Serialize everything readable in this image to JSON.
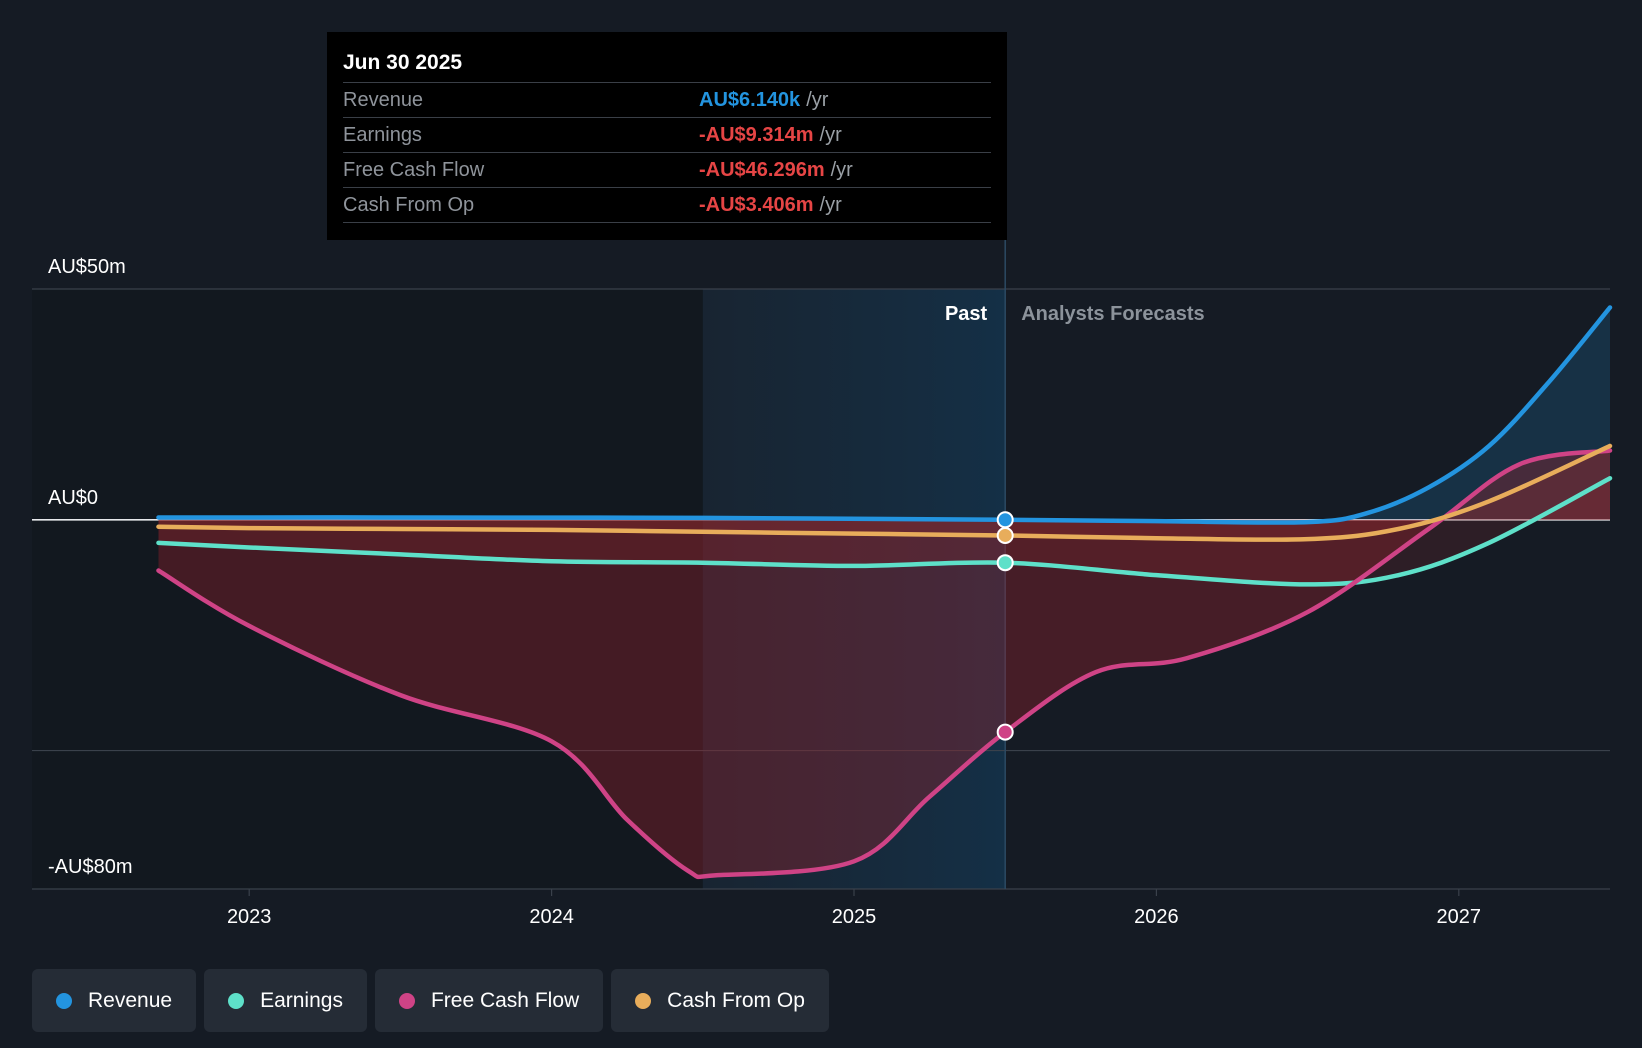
{
  "tooltip": {
    "date": "Jun 30 2025",
    "rows": [
      {
        "label": "Revenue",
        "value": "AU$6.140k",
        "unit": "/yr",
        "color": "#2394df"
      },
      {
        "label": "Earnings",
        "value": "-AU$9.314m",
        "unit": "/yr",
        "color": "#e64545"
      },
      {
        "label": "Free Cash Flow",
        "value": "-AU$46.296m",
        "unit": "/yr",
        "color": "#e64545"
      },
      {
        "label": "Cash From Op",
        "value": "-AU$3.406m",
        "unit": "/yr",
        "color": "#e64545"
      }
    ]
  },
  "legend": [
    {
      "label": "Revenue",
      "color": "#2394df"
    },
    {
      "label": "Earnings",
      "color": "#5ee0c9"
    },
    {
      "label": "Free Cash Flow",
      "color": "#cf4386"
    },
    {
      "label": "Cash From Op",
      "color": "#e8ad5b"
    }
  ],
  "chart_data": {
    "type": "line",
    "title": "",
    "xlabel": "",
    "ylabel": "",
    "xlim": [
      2022.5,
      2027.5
    ],
    "ylim": [
      -80,
      50
    ],
    "y_tick_labels": [
      {
        "value": 50,
        "label": "AU$50m"
      },
      {
        "value": 0,
        "label": "AU$0"
      },
      {
        "value": -80,
        "label": "-AU$80m"
      }
    ],
    "gridlines": [
      50,
      0,
      -50,
      -80
    ],
    "x_ticks": [
      {
        "value": 2023,
        "label": "2023"
      },
      {
        "value": 2024,
        "label": "2024"
      },
      {
        "value": 2025,
        "label": "2025"
      },
      {
        "value": 2026,
        "label": "2026"
      },
      {
        "value": 2027,
        "label": "2027"
      }
    ],
    "past_label": "Past",
    "forecast_label": "Analysts Forecasts",
    "past_region": [
      2024.5,
      2025.5
    ],
    "divider_x": 2025.5,
    "series": [
      {
        "name": "Revenue",
        "color": "#2394df",
        "x": [
          2022.7,
          2023.5,
          2024.5,
          2025.5,
          2026,
          2026.5,
          2026.7,
          2026.9,
          2027.1,
          2027.3,
          2027.5
        ],
        "y": [
          0.5,
          0.5,
          0.4,
          0.006,
          -0.3,
          -0.5,
          1.5,
          7,
          16,
          30,
          46
        ]
      },
      {
        "name": "Earnings",
        "color": "#5ee0c9",
        "x": [
          2022.7,
          2023,
          2023.5,
          2024,
          2024.5,
          2025,
          2025.5,
          2026,
          2026.5,
          2026.8,
          2027.1,
          2027.5
        ],
        "y": [
          -5,
          -6,
          -7.5,
          -9,
          -9.3,
          -10,
          -9.3,
          -12,
          -14,
          -12,
          -5,
          9
        ]
      },
      {
        "name": "Free Cash Flow",
        "color": "#cf4386",
        "x": [
          2022.7,
          2023,
          2023.5,
          2024,
          2024.25,
          2024.45,
          2024.55,
          2025,
          2025.25,
          2025.5,
          2025.8,
          2026.1,
          2026.5,
          2026.9,
          2027.2,
          2027.5
        ],
        "y": [
          -11,
          -23,
          -38,
          -48,
          -65,
          -76,
          -77,
          -74,
          -60,
          -46,
          -33,
          -30,
          -20,
          -2,
          12,
          15
        ]
      },
      {
        "name": "Cash From Op",
        "color": "#e8ad5b",
        "x": [
          2022.7,
          2023,
          2023.5,
          2024,
          2024.5,
          2025,
          2025.5,
          2026,
          2026.5,
          2026.8,
          2027.1,
          2027.5
        ],
        "y": [
          -1.5,
          -1.8,
          -2,
          -2.2,
          -2.6,
          -3,
          -3.4,
          -4,
          -4.2,
          -2,
          4,
          16
        ]
      }
    ],
    "highlight_x": 2025.5
  }
}
